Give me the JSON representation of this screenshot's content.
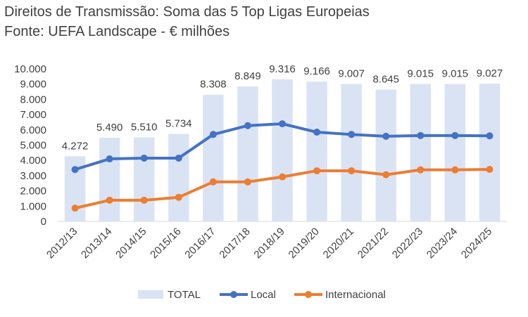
{
  "chart_data": {
    "type": "bar",
    "title": "Direitos de Transmissão: Soma das 5 Top Ligas Europeias",
    "subtitle": "Fonte: UEFA Landscape - € milhões",
    "xlabel": "",
    "ylabel": "",
    "ylim": [
      0,
      10000
    ],
    "yticks": [
      0,
      1000,
      2000,
      3000,
      4000,
      5000,
      6000,
      7000,
      8000,
      9000,
      10000
    ],
    "ytick_labels": [
      "0",
      "1.000",
      "2.000",
      "3.000",
      "4.000",
      "5.000",
      "6.000",
      "7.000",
      "8.000",
      "9.000",
      "10.000"
    ],
    "categories": [
      "2012/13",
      "2013/14",
      "2014/15",
      "2015/16",
      "2016/17",
      "2017/18",
      "2018/19",
      "2019/20",
      "2020/21",
      "2021/22",
      "2022/23",
      "2023/24",
      "2024/25"
    ],
    "grid": false,
    "legend": "bottom",
    "series": [
      {
        "name": "TOTAL",
        "type": "bar",
        "color": "#dae3f3",
        "values": [
          4272,
          5490,
          5510,
          5734,
          8308,
          8849,
          9316,
          9166,
          9007,
          8645,
          9015,
          9015,
          9027
        ],
        "labels": [
          "4.272",
          "5.490",
          "5.510",
          "5.734",
          "8.308",
          "8.849",
          "9.316",
          "9.166",
          "9.007",
          "8.645",
          "9.015",
          "9.015",
          "9.027"
        ]
      },
      {
        "name": "Local",
        "type": "line",
        "color": "#4472c4",
        "values": [
          3400,
          4100,
          4150,
          4150,
          5700,
          6280,
          6400,
          5850,
          5700,
          5580,
          5630,
          5630,
          5610
        ]
      },
      {
        "name": "Internacional",
        "type": "line",
        "color": "#ed7d31",
        "values": [
          870,
          1390,
          1390,
          1580,
          2590,
          2590,
          2920,
          3320,
          3320,
          3060,
          3380,
          3380,
          3410
        ]
      }
    ]
  }
}
